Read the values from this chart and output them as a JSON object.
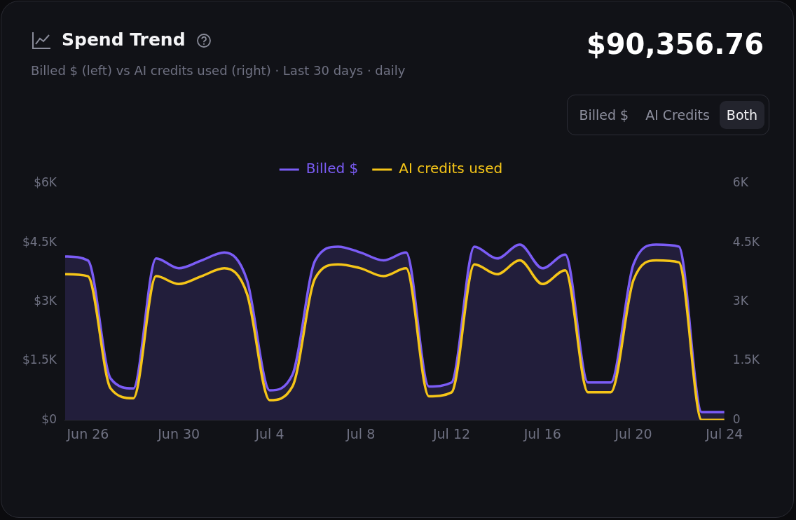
{
  "chart_data": {
    "type": "line",
    "title": "Spend Trend",
    "subtitle": "Billed $ (left) vs AI credits used (right) · Last 30 days · daily",
    "annotations": [
      "$90,356.76",
      "Billed $",
      "AI Credits",
      "Both"
    ],
    "x": [
      "--06-25",
      "--06-26",
      "--06-27",
      "--06-28",
      "--06-29",
      "--06-30",
      "--07-01",
      "--07-02",
      "--07-03",
      "--07-04",
      "--07-05",
      "--07-06",
      "--07-07",
      "--07-08",
      "--07-09",
      "--07-10",
      "--07-11",
      "--07-12",
      "--07-13",
      "--07-14",
      "--07-15",
      "--07-16",
      "--07-17",
      "--07-18",
      "--07-19",
      "--07-20",
      "--07-21",
      "--07-22",
      "--07-23",
      "--07-24"
    ],
    "series": [
      {
        "name": "Billed $",
        "type": "area",
        "color": "#7b5cf6",
        "values": [
          4150,
          4050,
          1050,
          800,
          4100,
          3850,
          4050,
          4250,
          3550,
          750,
          1150,
          4050,
          4400,
          4250,
          4050,
          4250,
          850,
          950,
          4400,
          4100,
          4450,
          3850,
          4200,
          950,
          950,
          3950,
          4450,
          4400,
          200,
          200
        ]
      },
      {
        "name": "AI credits used",
        "type": "line",
        "axis": "y2",
        "color": "#f5c518",
        "values": [
          3700,
          3650,
          800,
          550,
          3650,
          3450,
          3650,
          3850,
          3200,
          500,
          850,
          3600,
          3950,
          3850,
          3650,
          3850,
          600,
          700,
          3950,
          3700,
          4050,
          3450,
          3800,
          700,
          700,
          3550,
          4050,
          4000,
          0,
          0
        ]
      }
    ],
    "xlim": [
      "--06-25",
      "--07-24"
    ],
    "xticks": [
      {
        "value": "--06-26",
        "label": "Jun 26"
      },
      {
        "value": "--06-30",
        "label": "Jun 30"
      },
      {
        "value": "--07-04",
        "label": "Jul 4"
      },
      {
        "value": "--07-08",
        "label": "Jul 8"
      },
      {
        "value": "--07-12",
        "label": "Jul 12"
      },
      {
        "value": "--07-16",
        "label": "Jul 16"
      },
      {
        "value": "--07-20",
        "label": "Jul 20"
      },
      {
        "value": "--07-24",
        "label": "Jul 24"
      }
    ],
    "ylim": [
      0,
      6000
    ],
    "yticks": [
      {
        "value": 0,
        "label": "$0"
      },
      {
        "value": 1500,
        "label": "$1.5K"
      },
      {
        "value": 3000,
        "label": "$3K"
      },
      {
        "value": 4500,
        "label": "$4.5K"
      },
      {
        "value": 6000,
        "label": "$6K"
      }
    ],
    "y2lim": [
      0,
      6000
    ],
    "y2ticks": [
      0,
      {
        "value": 1500,
        "label": "1.5K"
      },
      {
        "value": 3000,
        "label": "3K"
      },
      {
        "value": 4500,
        "label": "4.5K"
      },
      {
        "value": 6000,
        "label": "6K"
      }
    ],
    "legend": "top"
  }
}
